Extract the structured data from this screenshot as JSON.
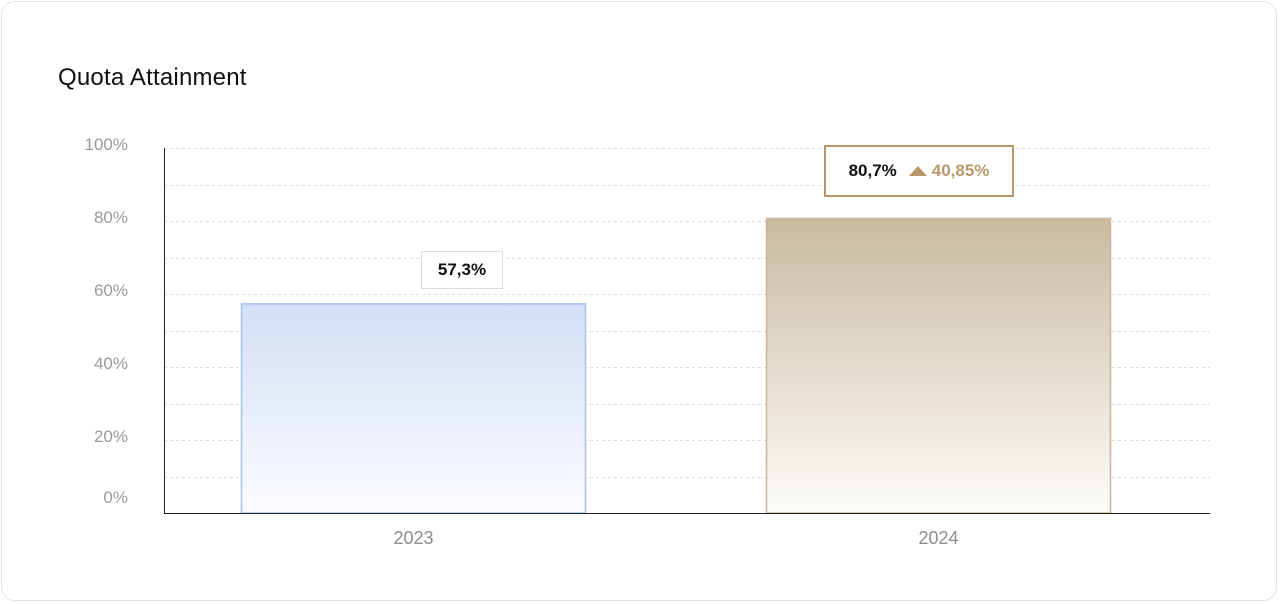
{
  "chart_data": {
    "type": "bar",
    "title": "Quota Attainment",
    "categories": [
      "2023",
      "2024"
    ],
    "values": [
      57.3,
      80.7
    ],
    "value_labels": [
      "57,3%",
      "80,7%"
    ],
    "change_label": "40,85%",
    "change_direction": "up",
    "ylim": [
      0,
      100
    ],
    "yticks": [
      0,
      20,
      40,
      60,
      80,
      100
    ],
    "ytick_labels": [
      "0%",
      "20%",
      "40%",
      "60%",
      "80%",
      "100%"
    ],
    "grid": true,
    "colors": {
      "bar_2023_top": "#d3dff5",
      "bar_2023_border": "#a8c1ee",
      "bar_2024_top": "#cabba0",
      "bar_2024_border": "#c9b69a",
      "accent": "#b8986a"
    }
  }
}
